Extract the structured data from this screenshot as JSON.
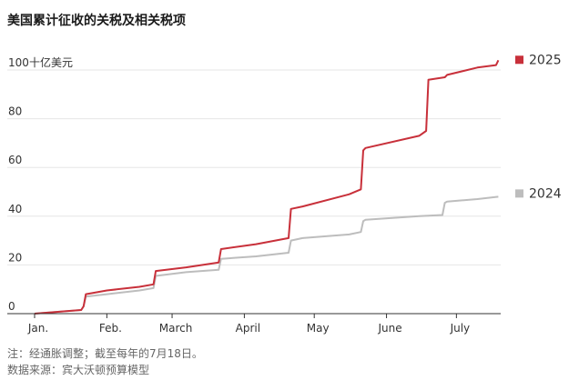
{
  "title": "美国累计征收的关税及相关税项",
  "note": "注：经通胀调整；截至每年的7月18日。",
  "source": "数据来源：宾大沃顿预算模型",
  "colors": {
    "2025": "#c8303a",
    "2024": "#bdbdbd",
    "grid": "#e6e6e6",
    "axis": "#333333",
    "text": "#333333"
  },
  "chart_data": {
    "type": "line",
    "y_unit_label": "十亿美元",
    "ylim": [
      0,
      100
    ],
    "yticks": [
      0,
      20,
      40,
      60,
      80,
      100
    ],
    "ytick_labels": [
      "0",
      "20",
      "40",
      "60",
      "80",
      "100"
    ],
    "xlim": [
      0,
      200
    ],
    "x_unit": "day of year",
    "month_labels": [
      "Jan.",
      "Feb.",
      "March",
      "April",
      "May",
      "June",
      "July"
    ],
    "month_positions": [
      0,
      31,
      59,
      90,
      120,
      151,
      181
    ],
    "grid": "horizontal",
    "legend": "right, at line ends",
    "series": [
      {
        "name": "2025",
        "color": "#c8303a",
        "x": [
          0,
          20,
          21,
          22,
          31,
          45,
          51,
          52,
          65,
          79,
          80,
          95,
          109,
          110,
          115,
          135,
          140,
          141,
          142,
          165,
          168,
          169,
          176,
          177,
          190,
          198,
          199
        ],
        "y": [
          0,
          1.5,
          3,
          8,
          9.5,
          11,
          12,
          17.5,
          19,
          21,
          26.5,
          28.5,
          31,
          43,
          44,
          49,
          51,
          67,
          68,
          73,
          75,
          96,
          97,
          98,
          101,
          102,
          104
        ]
      },
      {
        "name": "2024",
        "color": "#bdbdbd",
        "x": [
          0,
          20,
          21,
          22,
          31,
          45,
          51,
          52,
          65,
          79,
          80,
          95,
          109,
          110,
          115,
          135,
          140,
          141,
          142,
          165,
          175,
          176,
          177,
          190,
          199
        ],
        "y": [
          0,
          1.5,
          3,
          7,
          8,
          9.5,
          10.5,
          15.5,
          17,
          18,
          22.5,
          23.5,
          25,
          30,
          31,
          32.5,
          33.5,
          38,
          38.5,
          40,
          40.5,
          45.5,
          46,
          47,
          48
        ]
      }
    ]
  }
}
